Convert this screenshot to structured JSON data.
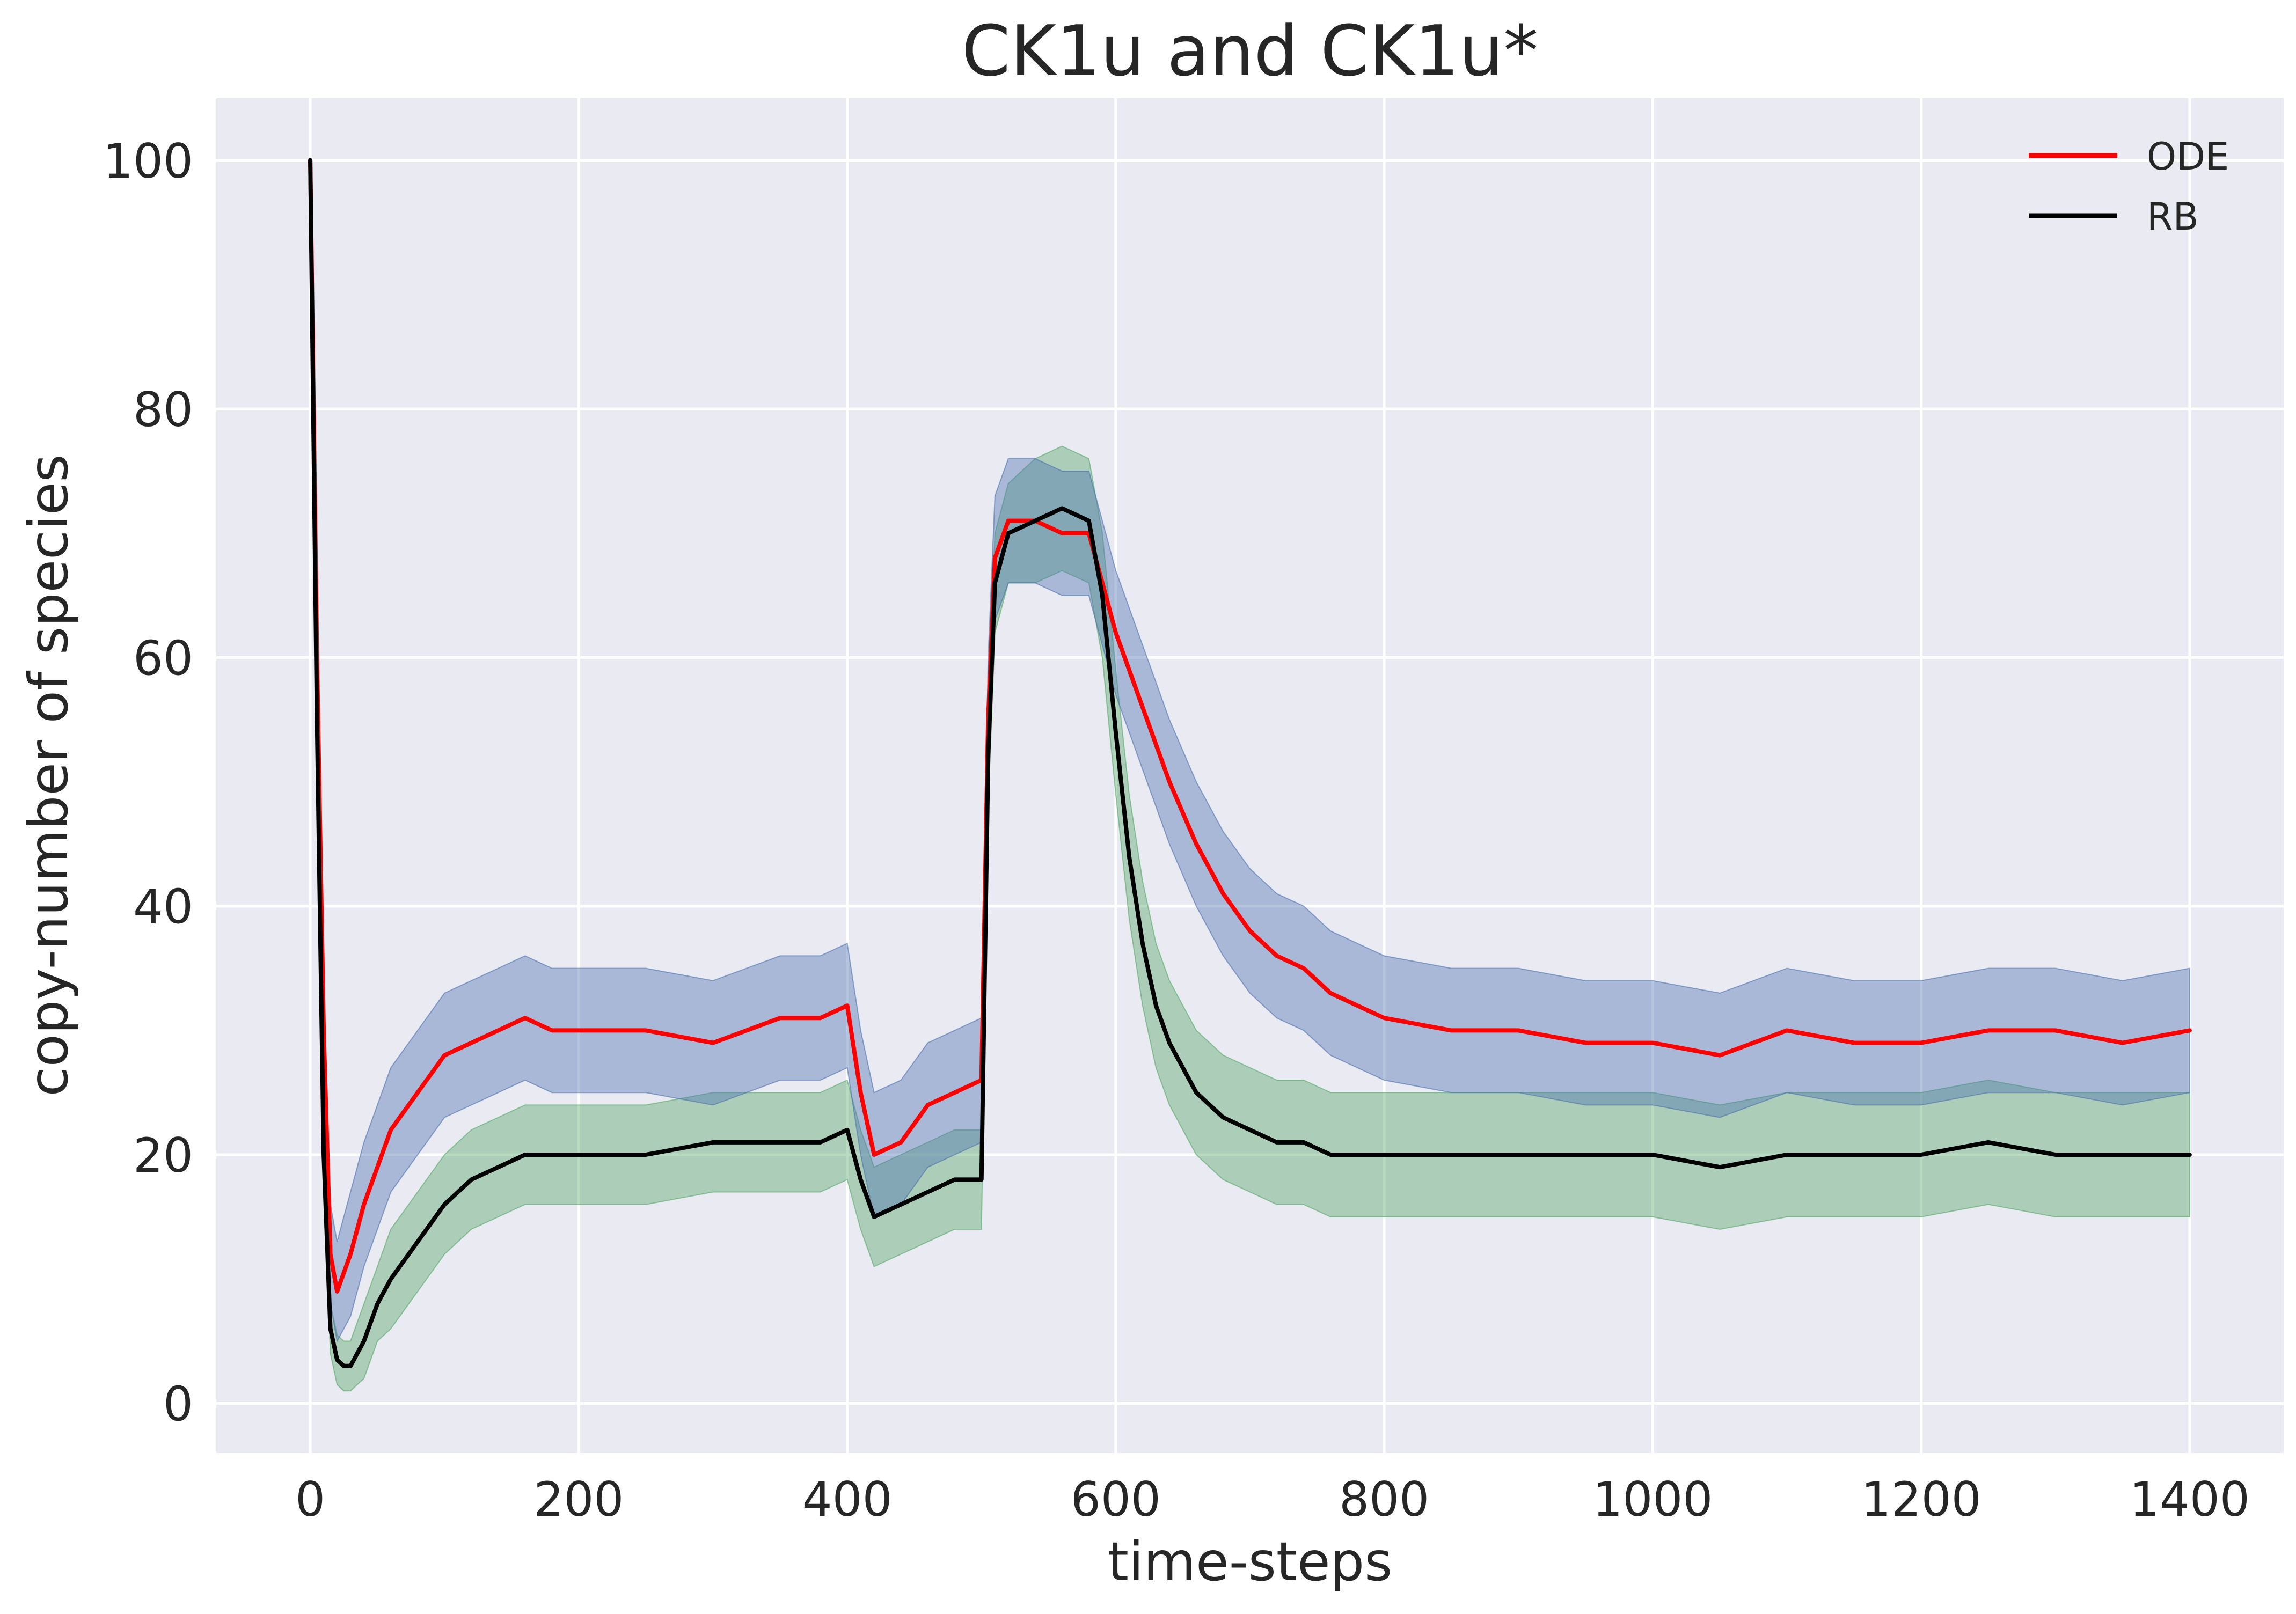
{
  "chart_data": {
    "type": "line",
    "title": "CK1u and CK1u*",
    "xlabel": "time-steps",
    "ylabel": "copy-number of species",
    "xlim": [
      -70,
      1470
    ],
    "ylim": [
      -4,
      105
    ],
    "xticks": [
      0,
      200,
      400,
      600,
      800,
      1000,
      1200,
      1400
    ],
    "yticks": [
      0,
      20,
      40,
      60,
      80,
      100
    ],
    "grid": true,
    "legend_position": "top-right",
    "background": "#eaeaf2",
    "series": [
      {
        "name": "ODE",
        "color": "#ff0000",
        "band_color": "#4c72b0",
        "x": [
          0,
          5,
          10,
          15,
          20,
          30,
          40,
          50,
          60,
          80,
          100,
          120,
          140,
          160,
          180,
          200,
          250,
          300,
          350,
          380,
          400,
          410,
          420,
          440,
          460,
          480,
          500,
          505,
          510,
          520,
          540,
          560,
          580,
          590,
          600,
          620,
          640,
          660,
          680,
          700,
          720,
          740,
          760,
          780,
          800,
          850,
          900,
          950,
          1000,
          1050,
          1100,
          1150,
          1200,
          1250,
          1300,
          1350,
          1400
        ],
        "y": [
          100,
          60,
          30,
          12,
          9,
          12,
          16,
          19,
          22,
          25,
          28,
          29,
          30,
          31,
          30,
          30,
          30,
          29,
          31,
          31,
          32,
          25,
          20,
          21,
          24,
          25,
          26,
          55,
          68,
          71,
          71,
          70,
          70,
          66,
          62,
          56,
          50,
          45,
          41,
          38,
          36,
          35,
          33,
          32,
          31,
          30,
          30,
          29,
          29,
          28,
          30,
          29,
          29,
          30,
          30,
          29,
          30
        ],
        "band_half_width": [
          0,
          3,
          4,
          4,
          4,
          5,
          5,
          5,
          5,
          5,
          5,
          5,
          5,
          5,
          5,
          5,
          5,
          5,
          5,
          5,
          5,
          5,
          5,
          5,
          5,
          5,
          5,
          5,
          5,
          5,
          5,
          5,
          5,
          5,
          5,
          5,
          5,
          5,
          5,
          5,
          5,
          5,
          5,
          5,
          5,
          5,
          5,
          5,
          5,
          5,
          5,
          5,
          5,
          5,
          5,
          5,
          5
        ]
      },
      {
        "name": "RB",
        "color": "#000000",
        "band_color": "#55a868",
        "x": [
          0,
          5,
          10,
          15,
          20,
          25,
          30,
          40,
          50,
          60,
          80,
          100,
          120,
          140,
          160,
          180,
          200,
          250,
          300,
          350,
          380,
          400,
          410,
          420,
          440,
          460,
          480,
          500,
          505,
          510,
          520,
          540,
          560,
          580,
          590,
          600,
          610,
          620,
          630,
          640,
          660,
          680,
          700,
          720,
          740,
          760,
          780,
          800,
          850,
          900,
          950,
          1000,
          1050,
          1100,
          1150,
          1200,
          1250,
          1300,
          1350,
          1400
        ],
        "y": [
          100,
          55,
          20,
          6,
          3.5,
          3,
          3,
          5,
          8,
          10,
          13,
          16,
          18,
          19,
          20,
          20,
          20,
          20,
          21,
          21,
          21,
          22,
          18,
          15,
          16,
          17,
          18,
          18,
          52,
          66,
          70,
          71,
          72,
          71,
          65,
          54,
          44,
          37,
          32,
          29,
          25,
          23,
          22,
          21,
          21,
          20,
          20,
          20,
          20,
          20,
          20,
          20,
          19,
          20,
          20,
          20,
          21,
          20,
          20,
          20
        ],
        "band_half_width": [
          0,
          2,
          2,
          2,
          2,
          2,
          2,
          3,
          3,
          4,
          4,
          4,
          4,
          4,
          4,
          4,
          4,
          4,
          4,
          4,
          4,
          4,
          4,
          4,
          4,
          4,
          4,
          4,
          4,
          4,
          4,
          5,
          5,
          5,
          5,
          5,
          5,
          5,
          5,
          5,
          5,
          5,
          5,
          5,
          5,
          5,
          5,
          5,
          5,
          5,
          5,
          5,
          5,
          5,
          5,
          5,
          5,
          5,
          5,
          5
        ]
      }
    ]
  }
}
